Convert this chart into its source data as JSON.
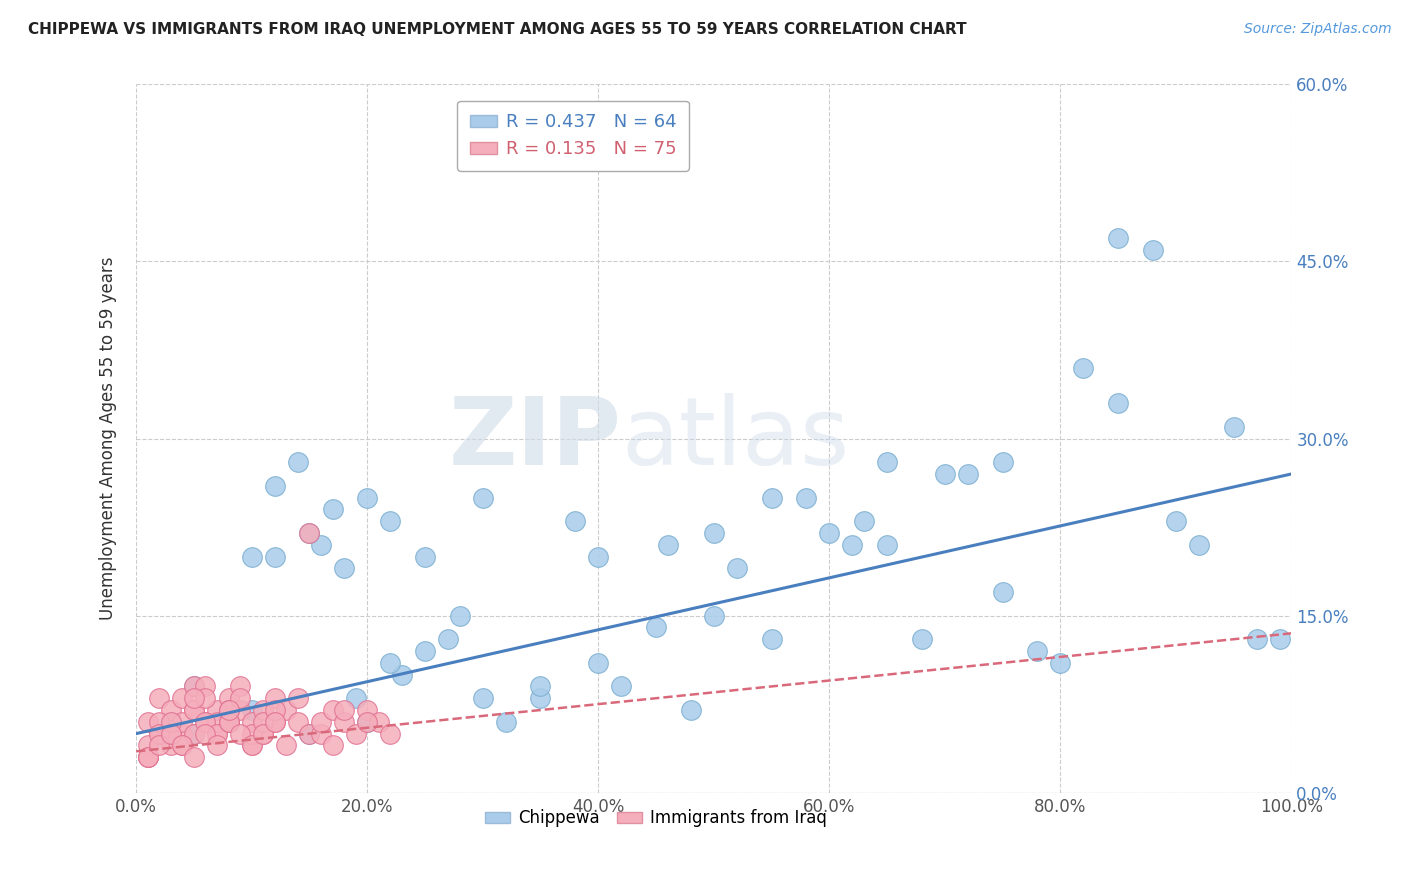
{
  "title": "CHIPPEWA VS IMMIGRANTS FROM IRAQ UNEMPLOYMENT AMONG AGES 55 TO 59 YEARS CORRELATION CHART",
  "source": "Source: ZipAtlas.com",
  "ylabel": "Unemployment Among Ages 55 to 59 years",
  "xlabel": "",
  "xlim": [
    0,
    100
  ],
  "ylim": [
    0,
    60
  ],
  "xticks": [
    0,
    20,
    40,
    60,
    80,
    100
  ],
  "xtick_labels": [
    "0.0%",
    "20.0%",
    "40.0%",
    "60.0%",
    "80.0%",
    "100.0%"
  ],
  "yticks": [
    0,
    15,
    30,
    45,
    60
  ],
  "ytick_labels": [
    "0.0%",
    "15.0%",
    "30.0%",
    "45.0%",
    "60.0%"
  ],
  "chippewa_color": "#A8CCEA",
  "iraq_color": "#F5AEBB",
  "chippewa_line_color": "#4A7FBF",
  "iraq_line_color": "#D9697A",
  "R_chippewa": 0.437,
  "N_chippewa": 64,
  "R_iraq": 0.135,
  "N_iraq": 75,
  "watermark_zip": "ZIP",
  "watermark_atlas": "atlas",
  "background_color": "#ffffff",
  "grid_color": "#cccccc",
  "chippewa_x": [
    3,
    5,
    8,
    10,
    12,
    14,
    15,
    16,
    17,
    18,
    19,
    20,
    22,
    23,
    25,
    27,
    28,
    30,
    32,
    35,
    38,
    40,
    42,
    45,
    48,
    50,
    52,
    55,
    58,
    60,
    62,
    65,
    68,
    70,
    72,
    75,
    78,
    80,
    82,
    85,
    88,
    90,
    92,
    95,
    97,
    99,
    46,
    63,
    5,
    8,
    12,
    22,
    35,
    50,
    10,
    15,
    20,
    25,
    30,
    40,
    55,
    65,
    75,
    85
  ],
  "chippewa_y": [
    6,
    5,
    6,
    7,
    26,
    28,
    5,
    21,
    24,
    19,
    8,
    6,
    23,
    10,
    12,
    13,
    15,
    8,
    6,
    8,
    23,
    11,
    9,
    14,
    7,
    22,
    19,
    13,
    25,
    22,
    21,
    21,
    13,
    27,
    27,
    28,
    12,
    11,
    36,
    47,
    46,
    23,
    21,
    31,
    13,
    13,
    21,
    23,
    9,
    6,
    20,
    11,
    9,
    15,
    20,
    22,
    25,
    20,
    25,
    20,
    25,
    28,
    17,
    33
  ],
  "iraq_x": [
    1,
    1,
    2,
    2,
    3,
    3,
    4,
    4,
    5,
    5,
    6,
    6,
    7,
    7,
    8,
    8,
    9,
    9,
    10,
    10,
    11,
    11,
    12,
    12,
    13,
    13,
    14,
    14,
    15,
    15,
    16,
    16,
    17,
    17,
    18,
    18,
    19,
    20,
    21,
    22,
    1,
    2,
    3,
    4,
    5,
    6,
    7,
    8,
    9,
    10,
    11,
    12,
    1,
    2,
    3,
    4,
    5,
    6,
    7,
    8,
    1,
    2,
    3,
    4,
    5,
    6,
    7,
    8,
    9,
    10,
    11,
    12,
    20,
    5,
    8
  ],
  "iraq_y": [
    3,
    6,
    5,
    8,
    4,
    7,
    5,
    8,
    7,
    9,
    6,
    9,
    5,
    7,
    6,
    8,
    7,
    9,
    4,
    6,
    5,
    7,
    6,
    8,
    7,
    4,
    6,
    8,
    22,
    5,
    5,
    6,
    4,
    7,
    6,
    7,
    5,
    7,
    6,
    5,
    4,
    6,
    5,
    6,
    7,
    8,
    6,
    7,
    8,
    5,
    6,
    7,
    3,
    5,
    6,
    4,
    5,
    6,
    5,
    6,
    3,
    4,
    5,
    4,
    3,
    5,
    4,
    6,
    5,
    4,
    5,
    6,
    6,
    8,
    7
  ]
}
